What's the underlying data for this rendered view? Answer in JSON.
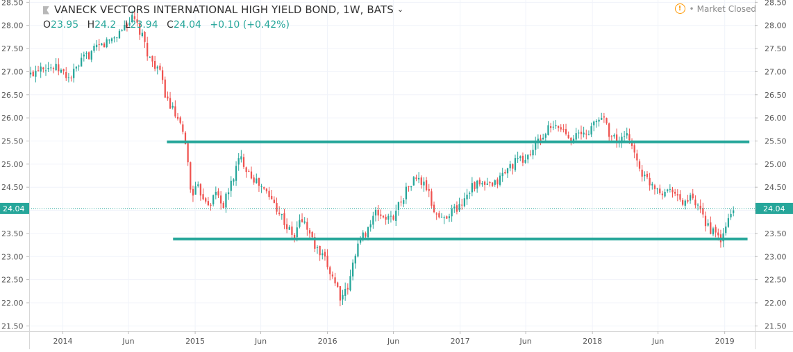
{
  "legend": {
    "title": "VANECK VECTORS INTERNATIONAL HIGH YIELD BOND, 1W, BATS",
    "chevron": "⌄",
    "open_label": "O",
    "open_value": "23.95",
    "high_label": "H",
    "high_value": "24.2",
    "low_label": "L",
    "low_value": "23.94",
    "close_label": "C",
    "close_value": "24.04",
    "change": "+0.10 (+0.42%)"
  },
  "market_status": {
    "icon": "warning-circle-icon",
    "dot": "•",
    "text": "Market Closed"
  },
  "colors": {
    "up": "#26a69a",
    "down": "#ef5350",
    "support_resistance": "#26a69a",
    "grid": "#f0f3fa",
    "axis_text": "#555555"
  },
  "chart_data": {
    "type": "candlestick",
    "interval": "1W",
    "title": "VANECK VECTORS INTERNATIONAL HIGH YIELD BOND, 1W, BATS",
    "last_price": 24.04,
    "last_price_label": "24.04",
    "ylim": [
      21.4,
      28.55
    ],
    "y_ticks": [
      21.5,
      22.0,
      22.5,
      23.0,
      23.5,
      24.0,
      24.5,
      25.0,
      25.5,
      26.0,
      26.5,
      27.0,
      27.5,
      28.0,
      28.5
    ],
    "y_tick_labels": [
      "21.50",
      "22.00",
      "22.50",
      "23.00",
      "23.50",
      "24.00",
      "24.50",
      "25.00",
      "25.50",
      "26.00",
      "26.50",
      "27.00",
      "27.50",
      "28.00",
      "28.50"
    ],
    "xlim": [
      "2013-09-30",
      "2019-03-25"
    ],
    "x_ticks": [
      {
        "date": "2014-01-01",
        "label": "2014"
      },
      {
        "date": "2014-07-01",
        "label": "Jun"
      },
      {
        "date": "2015-01-01",
        "label": "2015"
      },
      {
        "date": "2015-07-01",
        "label": "Jun"
      },
      {
        "date": "2016-01-01",
        "label": "2016"
      },
      {
        "date": "2016-07-01",
        "label": "Jun"
      },
      {
        "date": "2017-01-01",
        "label": "2017"
      },
      {
        "date": "2017-07-01",
        "label": "Jun"
      },
      {
        "date": "2018-01-01",
        "label": "2018"
      },
      {
        "date": "2018-07-01",
        "label": "Jun"
      },
      {
        "date": "2019-01-01",
        "label": "2019"
      }
    ],
    "resistance": {
      "value": 25.48,
      "start": "2014-10-15",
      "end": "2019-03-10"
    },
    "support": {
      "value": 23.38,
      "start": "2014-11-01",
      "end": "2019-03-05"
    },
    "close_path": [
      {
        "date": "2013-09-30",
        "close": 26.9
      },
      {
        "date": "2013-11-01",
        "close": 27.15
      },
      {
        "date": "2013-12-20",
        "close": 27.05
      },
      {
        "date": "2014-01-20",
        "close": 26.85
      },
      {
        "date": "2014-03-01",
        "close": 27.3
      },
      {
        "date": "2014-04-15",
        "close": 27.55
      },
      {
        "date": "2014-06-01",
        "close": 27.8
      },
      {
        "date": "2014-06-25",
        "close": 28.05
      },
      {
        "date": "2014-07-15",
        "close": 28.15
      },
      {
        "date": "2014-08-10",
        "close": 27.7
      },
      {
        "date": "2014-08-30",
        "close": 27.25
      },
      {
        "date": "2014-09-20",
        "close": 27.1
      },
      {
        "date": "2014-10-15",
        "close": 26.4
      },
      {
        "date": "2014-11-10",
        "close": 26.0
      },
      {
        "date": "2014-12-05",
        "close": 25.5
      },
      {
        "date": "2014-12-20",
        "close": 24.4
      },
      {
        "date": "2015-01-10",
        "close": 24.45
      },
      {
        "date": "2015-02-10",
        "close": 24.15
      },
      {
        "date": "2015-03-01",
        "close": 24.4
      },
      {
        "date": "2015-03-20",
        "close": 24.1
      },
      {
        "date": "2015-04-15",
        "close": 24.7
      },
      {
        "date": "2015-05-05",
        "close": 25.15
      },
      {
        "date": "2015-05-25",
        "close": 24.9
      },
      {
        "date": "2015-06-20",
        "close": 24.6
      },
      {
        "date": "2015-07-20",
        "close": 24.35
      },
      {
        "date": "2015-08-20",
        "close": 24.0
      },
      {
        "date": "2015-09-10",
        "close": 23.65
      },
      {
        "date": "2015-10-01",
        "close": 23.4
      },
      {
        "date": "2015-10-20",
        "close": 23.85
      },
      {
        "date": "2015-11-10",
        "close": 23.55
      },
      {
        "date": "2015-12-01",
        "close": 23.15
      },
      {
        "date": "2015-12-25",
        "close": 22.9
      },
      {
        "date": "2016-01-20",
        "close": 22.5
      },
      {
        "date": "2016-02-10",
        "close": 22.05
      },
      {
        "date": "2016-03-01",
        "close": 22.4
      },
      {
        "date": "2016-03-20",
        "close": 23.2
      },
      {
        "date": "2016-04-20",
        "close": 23.6
      },
      {
        "date": "2016-05-15",
        "close": 23.95
      },
      {
        "date": "2016-06-05",
        "close": 23.85
      },
      {
        "date": "2016-06-25",
        "close": 23.8
      },
      {
        "date": "2016-07-20",
        "close": 24.2
      },
      {
        "date": "2016-08-10",
        "close": 24.5
      },
      {
        "date": "2016-09-01",
        "close": 24.7
      },
      {
        "date": "2016-09-30",
        "close": 24.5
      },
      {
        "date": "2016-10-20",
        "close": 24.0
      },
      {
        "date": "2016-11-10",
        "close": 23.8
      },
      {
        "date": "2016-12-01",
        "close": 23.95
      },
      {
        "date": "2017-01-01",
        "close": 24.1
      },
      {
        "date": "2017-02-01",
        "close": 24.55
      },
      {
        "date": "2017-03-01",
        "close": 24.55
      },
      {
        "date": "2017-04-01",
        "close": 24.5
      },
      {
        "date": "2017-05-01",
        "close": 24.8
      },
      {
        "date": "2017-06-01",
        "close": 25.05
      },
      {
        "date": "2017-07-01",
        "close": 25.1
      },
      {
        "date": "2017-08-01",
        "close": 25.45
      },
      {
        "date": "2017-09-01",
        "close": 25.75
      },
      {
        "date": "2017-10-01",
        "close": 25.8
      },
      {
        "date": "2017-11-01",
        "close": 25.6
      },
      {
        "date": "2017-12-15",
        "close": 25.65
      },
      {
        "date": "2018-01-15",
        "close": 25.95
      },
      {
        "date": "2018-02-01",
        "close": 26.05
      },
      {
        "date": "2018-02-20",
        "close": 25.6
      },
      {
        "date": "2018-03-15",
        "close": 25.5
      },
      {
        "date": "2018-04-15",
        "close": 25.6
      },
      {
        "date": "2018-05-01",
        "close": 25.1
      },
      {
        "date": "2018-05-25",
        "close": 24.7
      },
      {
        "date": "2018-06-20",
        "close": 24.55
      },
      {
        "date": "2018-07-15",
        "close": 24.4
      },
      {
        "date": "2018-08-10",
        "close": 24.5
      },
      {
        "date": "2018-09-01",
        "close": 24.15
      },
      {
        "date": "2018-10-01",
        "close": 24.25
      },
      {
        "date": "2018-11-01",
        "close": 23.85
      },
      {
        "date": "2018-12-01",
        "close": 23.5
      },
      {
        "date": "2018-12-25",
        "close": 23.35
      },
      {
        "date": "2019-01-10",
        "close": 23.8
      },
      {
        "date": "2019-01-25",
        "close": 24.04
      }
    ]
  }
}
